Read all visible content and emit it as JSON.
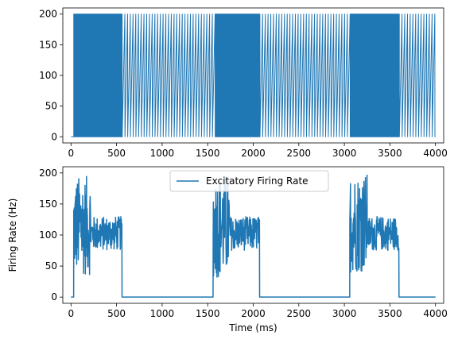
{
  "colors": {
    "series": "#1f77b4",
    "axis": "#000000",
    "background": "#ffffff"
  },
  "chart_data": [
    {
      "type": "line",
      "title": "",
      "xlabel": "",
      "ylabel": "",
      "xlim": [
        -90,
        4090
      ],
      "ylim": [
        -10,
        210
      ],
      "xticks": [
        0,
        500,
        1000,
        1500,
        2000,
        2500,
        3000,
        3500,
        4000
      ],
      "xtick_labels": [
        "0",
        "500",
        "1000",
        "1500",
        "2000",
        "2500",
        "3000",
        "3500",
        "4000"
      ],
      "yticks": [
        0,
        50,
        100,
        150,
        200
      ],
      "ytick_labels": [
        "0",
        "50",
        "100",
        "150",
        "200"
      ],
      "grid": false,
      "legend": null,
      "series": [
        {
          "style": "dense spikes between 0 and 200",
          "baseline": 0,
          "spike_value": 200,
          "x_start": 0,
          "x_end": 4000,
          "dense_blocks": [
            [
              30,
              560
            ],
            [
              1560,
              2070
            ],
            [
              3060,
              3600
            ]
          ],
          "sparse_spike_interval": 30
        }
      ]
    },
    {
      "type": "line",
      "title": "",
      "xlabel": "Time (ms)",
      "ylabel": "Firing Rate (Hz)",
      "xlim": [
        -90,
        4090
      ],
      "ylim": [
        -10,
        210
      ],
      "xticks": [
        0,
        500,
        1000,
        1500,
        2000,
        2500,
        3000,
        3500,
        4000
      ],
      "xtick_labels": [
        "0",
        "500",
        "1000",
        "1500",
        "2000",
        "2500",
        "3000",
        "3500",
        "4000"
      ],
      "yticks": [
        0,
        50,
        100,
        150,
        200
      ],
      "ytick_labels": [
        "0",
        "50",
        "100",
        "150",
        "200"
      ],
      "grid": false,
      "legend": "upper center",
      "series": [
        {
          "name": "Excitatory Firing Rate",
          "x_start": 0,
          "x_end": 4000,
          "baseline": 0,
          "active_bursts": [
            {
              "start": 30,
              "end": 560,
              "peak": 195,
              "mean": 100,
              "low": 35
            },
            {
              "start": 1560,
              "end": 2070,
              "peak": 200,
              "mean": 100,
              "low": 30
            },
            {
              "start": 3060,
              "end": 3600,
              "peak": 200,
              "mean": 100,
              "low": 40
            }
          ]
        }
      ]
    }
  ]
}
